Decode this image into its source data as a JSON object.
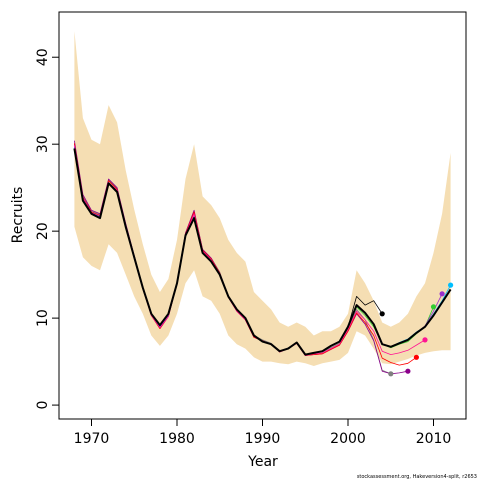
{
  "chart_data": {
    "type": "line",
    "xlabel": "Year",
    "ylabel": "Recruits",
    "xlim": [
      1966.2,
      2013.8
    ],
    "ylim": [
      -1.6,
      45.2
    ],
    "x_ticks": [
      1970,
      1980,
      1990,
      2000,
      2010
    ],
    "y_ticks": [
      0,
      10,
      20,
      30,
      40
    ],
    "x_tick_labels": [
      "1970",
      "1980",
      "1990",
      "2000",
      "2010"
    ],
    "y_tick_labels": [
      "0",
      "10",
      "20",
      "30",
      "40"
    ],
    "grid": false,
    "legend": "none",
    "footnote": "stockassessment.org, Hakeversion4-split, r2653",
    "band": {
      "color": "#F5DEB3",
      "x": [
        1968,
        1969,
        1970,
        1971,
        1972,
        1973,
        1974,
        1975,
        1976,
        1977,
        1978,
        1979,
        1980,
        1981,
        1982,
        1983,
        1984,
        1985,
        1986,
        1987,
        1988,
        1989,
        1990,
        1991,
        1992,
        1993,
        1994,
        1995,
        1996,
        1997,
        1998,
        1999,
        2000,
        2001,
        2002,
        2003,
        2004,
        2005,
        2006,
        2007,
        2008,
        2009,
        2010,
        2011,
        2012
      ],
      "upper": [
        43.0,
        33.0,
        30.5,
        30.0,
        34.5,
        32.5,
        27.0,
        22.5,
        18.5,
        15.0,
        13.0,
        14.5,
        19.0,
        26.0,
        30.0,
        24.0,
        23.0,
        21.5,
        19.0,
        17.5,
        16.5,
        13.0,
        12.0,
        11.0,
        9.5,
        9.0,
        9.5,
        9.0,
        8.0,
        8.5,
        8.5,
        9.0,
        10.5,
        15.5,
        14.0,
        12.0,
        9.5,
        9.0,
        9.5,
        10.5,
        12.5,
        14.0,
        17.5,
        22.0,
        29.0
      ],
      "lower": [
        20.5,
        17.0,
        16.0,
        15.5,
        18.5,
        17.5,
        15.0,
        12.5,
        10.5,
        8.0,
        6.8,
        8.0,
        10.5,
        14.0,
        15.5,
        12.5,
        12.0,
        10.5,
        8.0,
        7.0,
        6.5,
        5.5,
        5.0,
        5.0,
        4.8,
        4.7,
        5.0,
        4.8,
        4.5,
        4.8,
        5.0,
        5.2,
        6.0,
        8.5,
        8.0,
        6.5,
        4.8,
        4.7,
        5.0,
        5.3,
        5.7,
        6.0,
        6.2,
        6.3,
        6.3
      ]
    },
    "series": [
      {
        "color": "#000000",
        "endpoint_marker": true,
        "x": [
          1968,
          1969,
          1970,
          1971,
          1972,
          1973,
          1974,
          1975,
          1976,
          1977,
          1978,
          1979,
          1980,
          1981,
          1982,
          1983,
          1984,
          1985,
          1986,
          1987,
          1988,
          1989,
          1990,
          1991,
          1992,
          1993,
          1994,
          1995,
          1996,
          1997,
          1998,
          1999,
          2000,
          2001,
          2002,
          2003,
          2004
        ],
        "values": [
          29.5,
          23.5,
          22.0,
          21.5,
          25.5,
          24.5,
          20.5,
          17.0,
          13.5,
          10.5,
          9.2,
          10.5,
          14.0,
          19.5,
          21.5,
          17.5,
          16.5,
          15.0,
          12.5,
          11.0,
          10.0,
          8.0,
          7.3,
          7.0,
          6.2,
          6.5,
          7.2,
          5.8,
          6.0,
          6.2,
          6.8,
          7.3,
          9.0,
          12.5,
          11.5,
          12.0,
          10.5
        ]
      },
      {
        "color": "#808080",
        "endpoint_marker": true,
        "x": [
          1968,
          1969,
          1970,
          1971,
          1972,
          1973,
          1974,
          1975,
          1976,
          1977,
          1978,
          1979,
          1980,
          1981,
          1982,
          1983,
          1984,
          1985,
          1986,
          1987,
          1988,
          1989,
          1990,
          1991,
          1992,
          1993,
          1994,
          1995,
          1996,
          1997,
          1998,
          1999,
          2000,
          2001,
          2002,
          2003,
          2004,
          2005
        ],
        "values": [
          30.0,
          24.0,
          22.3,
          21.9,
          25.9,
          24.9,
          20.8,
          17.2,
          13.6,
          10.5,
          9.0,
          10.3,
          14.1,
          19.8,
          22.2,
          17.9,
          16.9,
          15.3,
          12.6,
          11.0,
          10.0,
          8.0,
          7.5,
          7.1,
          6.2,
          6.6,
          7.2,
          5.8,
          6.0,
          6.1,
          6.6,
          7.1,
          8.8,
          11.0,
          9.8,
          7.5,
          4.0,
          3.6
        ]
      },
      {
        "color": "#8B008B",
        "endpoint_marker": true,
        "x": [
          1968,
          1969,
          1970,
          1971,
          1972,
          1973,
          1974,
          1975,
          1976,
          1977,
          1978,
          1979,
          1980,
          1981,
          1982,
          1983,
          1984,
          1985,
          1986,
          1987,
          1988,
          1989,
          1990,
          1991,
          1992,
          1993,
          1994,
          1995,
          1996,
          1997,
          1998,
          1999,
          2000,
          2001,
          2002,
          2003,
          2004,
          2005,
          2006,
          2007
        ],
        "values": [
          30.4,
          24.2,
          22.4,
          22.0,
          26.0,
          25.0,
          20.9,
          17.2,
          13.5,
          10.4,
          8.8,
          10.2,
          14.0,
          19.8,
          22.4,
          17.9,
          16.9,
          15.2,
          12.4,
          10.8,
          9.8,
          7.8,
          7.4,
          7.0,
          6.1,
          6.5,
          7.1,
          5.7,
          5.8,
          5.9,
          6.4,
          6.9,
          8.5,
          10.5,
          9.3,
          7.4,
          3.9,
          3.6,
          3.7,
          3.9
        ]
      },
      {
        "color": "#FF0000",
        "endpoint_marker": true,
        "x": [
          1968,
          1969,
          1970,
          1971,
          1972,
          1973,
          1974,
          1975,
          1976,
          1977,
          1978,
          1979,
          1980,
          1981,
          1982,
          1983,
          1984,
          1985,
          1986,
          1987,
          1988,
          1989,
          1990,
          1991,
          1992,
          1993,
          1994,
          1995,
          1996,
          1997,
          1998,
          1999,
          2000,
          2001,
          2002,
          2003,
          2004,
          2005,
          2006,
          2007,
          2008
        ],
        "values": [
          30.1,
          23.9,
          22.2,
          21.8,
          25.8,
          24.8,
          20.7,
          17.1,
          13.4,
          10.3,
          8.8,
          10.2,
          14.0,
          19.7,
          22.2,
          17.8,
          16.8,
          15.2,
          12.4,
          10.8,
          9.8,
          7.8,
          7.4,
          7.0,
          6.1,
          6.5,
          7.1,
          5.7,
          5.8,
          5.9,
          6.4,
          6.9,
          8.5,
          10.6,
          9.5,
          8.0,
          5.4,
          4.9,
          4.6,
          4.8,
          5.5
        ]
      },
      {
        "color": "#FF1493",
        "endpoint_marker": true,
        "x": [
          1968,
          1969,
          1970,
          1971,
          1972,
          1973,
          1974,
          1975,
          1976,
          1977,
          1978,
          1979,
          1980,
          1981,
          1982,
          1983,
          1984,
          1985,
          1986,
          1987,
          1988,
          1989,
          1990,
          1991,
          1992,
          1993,
          1994,
          1995,
          1996,
          1997,
          1998,
          1999,
          2000,
          2001,
          2002,
          2003,
          2004,
          2005,
          2006,
          2007,
          2008,
          2009
        ],
        "values": [
          29.9,
          23.8,
          22.1,
          21.7,
          25.6,
          24.7,
          20.6,
          17.0,
          13.4,
          10.3,
          8.9,
          10.2,
          14.0,
          19.6,
          22.0,
          17.7,
          16.7,
          15.1,
          12.4,
          10.8,
          9.8,
          7.9,
          7.3,
          7.0,
          6.1,
          6.5,
          7.1,
          5.7,
          5.9,
          6.0,
          6.5,
          7.0,
          8.7,
          10.8,
          9.8,
          8.5,
          6.2,
          5.8,
          6.0,
          6.3,
          6.9,
          7.5
        ]
      },
      {
        "color": "#32CD32",
        "endpoint_marker": true,
        "x": [
          1968,
          1969,
          1970,
          1971,
          1972,
          1973,
          1974,
          1975,
          1976,
          1977,
          1978,
          1979,
          1980,
          1981,
          1982,
          1983,
          1984,
          1985,
          1986,
          1987,
          1988,
          1989,
          1990,
          1991,
          1992,
          1993,
          1994,
          1995,
          1996,
          1997,
          1998,
          1999,
          2000,
          2001,
          2002,
          2003,
          2004,
          2005,
          2006,
          2007,
          2008,
          2009,
          2010
        ],
        "values": [
          29.6,
          23.6,
          22.0,
          21.6,
          25.5,
          24.5,
          20.5,
          17.0,
          13.5,
          10.4,
          9.1,
          10.4,
          14.0,
          19.5,
          21.6,
          17.6,
          16.6,
          15.0,
          12.5,
          11.0,
          10.0,
          8.0,
          7.3,
          7.0,
          6.2,
          6.5,
          7.2,
          5.8,
          6.0,
          6.2,
          6.8,
          7.3,
          9.0,
          11.3,
          10.3,
          9.0,
          7.0,
          6.6,
          7.0,
          7.3,
          8.2,
          9.0,
          11.3
        ]
      },
      {
        "color": "#9932CC",
        "endpoint_marker": true,
        "x": [
          1968,
          1969,
          1970,
          1971,
          1972,
          1973,
          1974,
          1975,
          1976,
          1977,
          1978,
          1979,
          1980,
          1981,
          1982,
          1983,
          1984,
          1985,
          1986,
          1987,
          1988,
          1989,
          1990,
          1991,
          1992,
          1993,
          1994,
          1995,
          1996,
          1997,
          1998,
          1999,
          2000,
          2001,
          2002,
          2003,
          2004,
          2005,
          2006,
          2007,
          2008,
          2009,
          2010,
          2011
        ],
        "values": [
          29.7,
          23.7,
          22.1,
          21.7,
          25.6,
          24.6,
          20.6,
          17.0,
          13.5,
          10.4,
          9.0,
          10.3,
          14.0,
          19.5,
          21.7,
          17.6,
          16.6,
          15.0,
          12.5,
          11.0,
          10.0,
          8.0,
          7.3,
          7.0,
          6.2,
          6.5,
          7.2,
          5.8,
          6.0,
          6.2,
          6.8,
          7.3,
          9.0,
          11.5,
          10.6,
          9.3,
          7.0,
          6.7,
          7.1,
          7.5,
          8.3,
          9.1,
          10.8,
          12.8
        ]
      },
      {
        "color": "#00BFFF",
        "endpoint_marker": true,
        "x": [
          1968,
          1969,
          1970,
          1971,
          1972,
          1973,
          1974,
          1975,
          1976,
          1977,
          1978,
          1979,
          1980,
          1981,
          1982,
          1983,
          1984,
          1985,
          1986,
          1987,
          1988,
          1989,
          1990,
          1991,
          1992,
          1993,
          1994,
          1995,
          1996,
          1997,
          1998,
          1999,
          2000,
          2001,
          2002,
          2003,
          2004,
          2005,
          2006,
          2007,
          2008,
          2009,
          2010,
          2011,
          2012
        ],
        "values": [
          29.5,
          23.5,
          22.0,
          21.6,
          25.5,
          24.5,
          20.5,
          17.0,
          13.5,
          10.5,
          9.2,
          10.5,
          14.0,
          19.5,
          21.5,
          17.5,
          16.5,
          15.0,
          12.5,
          11.0,
          10.0,
          8.0,
          7.3,
          7.0,
          6.2,
          6.5,
          7.2,
          5.8,
          6.0,
          6.2,
          6.8,
          7.3,
          9.0,
          11.5,
          10.6,
          9.3,
          7.0,
          6.7,
          7.2,
          7.6,
          8.4,
          9.0,
          10.5,
          12.0,
          13.8
        ]
      },
      {
        "color": "#000000",
        "line_width": 2,
        "endpoint_marker": false,
        "x": [
          1968,
          1969,
          1970,
          1971,
          1972,
          1973,
          1974,
          1975,
          1976,
          1977,
          1978,
          1979,
          1980,
          1981,
          1982,
          1983,
          1984,
          1985,
          1986,
          1987,
          1988,
          1989,
          1990,
          1991,
          1992,
          1993,
          1994,
          1995,
          1996,
          1997,
          1998,
          1999,
          2000,
          2001,
          2002,
          2003,
          2004,
          2005,
          2006,
          2007,
          2008,
          2009,
          2010,
          2011,
          2012
        ],
        "values": [
          29.5,
          23.5,
          22.0,
          21.5,
          25.5,
          24.5,
          20.5,
          17.0,
          13.5,
          10.5,
          9.2,
          10.5,
          14.0,
          19.5,
          21.5,
          17.5,
          16.5,
          15.0,
          12.5,
          11.0,
          10.0,
          8.0,
          7.3,
          7.0,
          6.2,
          6.5,
          7.2,
          5.8,
          6.0,
          6.2,
          6.8,
          7.3,
          9.0,
          11.5,
          10.6,
          9.3,
          7.0,
          6.7,
          7.1,
          7.5,
          8.3,
          9.0,
          10.3,
          11.8,
          13.3
        ]
      }
    ]
  }
}
